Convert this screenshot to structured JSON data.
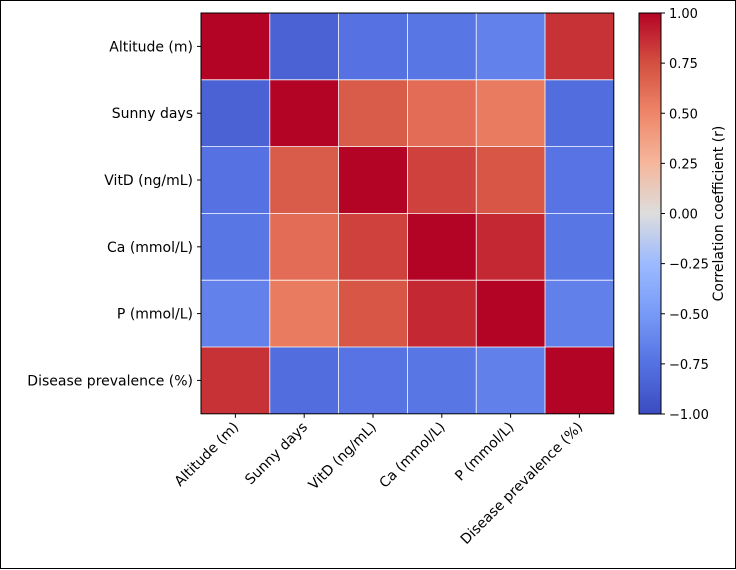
{
  "chart_data": {
    "type": "heatmap",
    "title": "",
    "xlabel": "",
    "ylabel": "",
    "x_labels": [
      "Altitude (m)",
      "Sunny days",
      "VitD (ng/mL)",
      "Ca (mmol/L)",
      "P (mmol/L)",
      "Disease prevalence (%)"
    ],
    "y_labels": [
      "Altitude (m)",
      "Sunny days",
      "VitD (ng/mL)",
      "Ca (mmol/L)",
      "P (mmol/L)",
      "Disease prevalence (%)"
    ],
    "values": [
      [
        1.0,
        -0.85,
        -0.75,
        -0.72,
        -0.65,
        0.85
      ],
      [
        -0.85,
        1.0,
        0.7,
        0.62,
        0.55,
        -0.78
      ],
      [
        -0.75,
        0.7,
        1.0,
        0.8,
        0.72,
        -0.73
      ],
      [
        -0.72,
        0.62,
        0.8,
        1.0,
        0.88,
        -0.72
      ],
      [
        -0.65,
        0.55,
        0.72,
        0.88,
        1.0,
        -0.66
      ],
      [
        0.85,
        -0.78,
        -0.73,
        -0.72,
        -0.66,
        1.0
      ]
    ],
    "colormap": "coolwarm",
    "vmin": -1.0,
    "vmax": 1.0,
    "colorbar": {
      "label": "Correlation coefficient (r)",
      "ticks": [
        1.0,
        0.75,
        0.5,
        0.25,
        0.0,
        -0.25,
        -0.5,
        -0.75,
        -1.0
      ],
      "tick_labels": [
        "1.00",
        "0.75",
        "0.50",
        "0.25",
        "0.00",
        "−0.25",
        "−0.50",
        "−0.75",
        "−1.00"
      ],
      "placement": "right"
    },
    "grid": true,
    "grid_color": "#ffffff"
  }
}
